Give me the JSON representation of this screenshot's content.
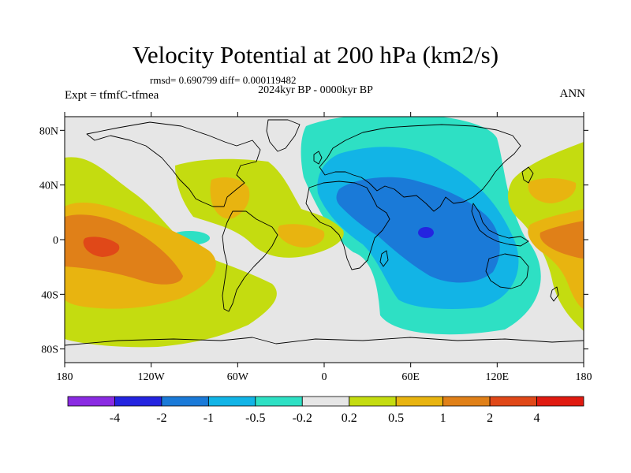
{
  "title": "Velocity Potential at 200 hPa (km2/s)",
  "stats": "rmsd= 0.690799 diff= 0.000119482",
  "period": "2024kyr BP - 0000kyr BP",
  "experiment": "Expt = tfmfC-tfmea",
  "season": "ANN",
  "map": {
    "lon_range": [
      -180,
      180
    ],
    "lat_range": [
      -90,
      90
    ],
    "lat_ticks": [
      {
        "value": 80,
        "label": "80N"
      },
      {
        "value": 40,
        "label": "40N"
      },
      {
        "value": 0,
        "label": "0"
      },
      {
        "value": -40,
        "label": "40S"
      },
      {
        "value": -80,
        "label": "80S"
      }
    ],
    "lon_ticks": [
      {
        "value": -180,
        "label": "180"
      },
      {
        "value": -120,
        "label": "120W"
      },
      {
        "value": -60,
        "label": "60W"
      },
      {
        "value": 0,
        "label": "0"
      },
      {
        "value": 60,
        "label": "60E"
      },
      {
        "value": 120,
        "label": "120E"
      },
      {
        "value": 180,
        "label": "180"
      }
    ]
  },
  "colorbar": {
    "colors": [
      "#8a2be2",
      "#2424e0",
      "#1a7ad8",
      "#12b4e6",
      "#2ee0c4",
      "#e6e6e6",
      "#c4dc10",
      "#e8b410",
      "#e08018",
      "#e04818",
      "#e01a10"
    ],
    "labels": [
      "-4",
      "-2",
      "-1",
      "-0.5",
      "-0.2",
      "0.2",
      "0.5",
      "1",
      "2",
      "4"
    ]
  },
  "field_colors": {
    "land": "#e6e6e6",
    "l1": "#c4dc10",
    "l2": "#e8b410",
    "l3": "#e08018",
    "l4": "#e04818",
    "l5": "#e01a10",
    "n1": "#2ee0c4",
    "n2": "#12b4e6",
    "n3": "#1a7ad8",
    "n4": "#2424e0"
  }
}
